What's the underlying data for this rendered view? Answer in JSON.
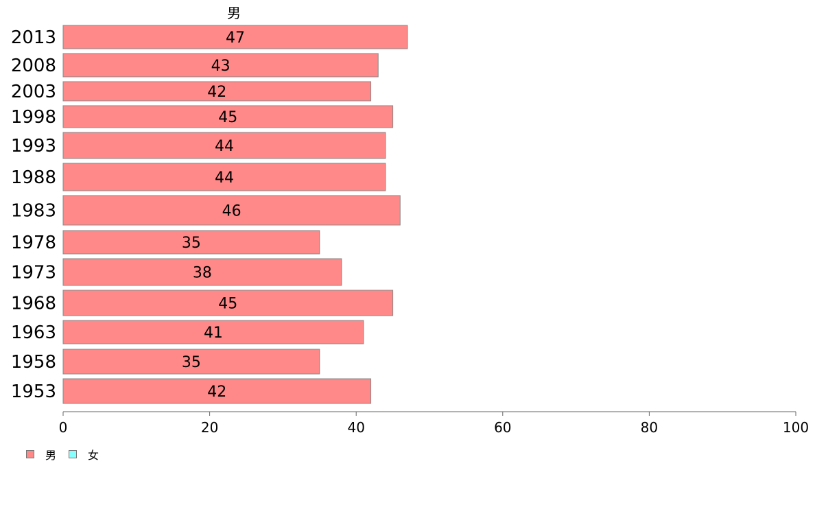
{
  "chart_data": {
    "type": "bar",
    "orientation": "horizontal",
    "series_title": "男",
    "categories": [
      "2013",
      "2008",
      "2003",
      "1998",
      "1993",
      "1988",
      "1983",
      "1978",
      "1973",
      "1968",
      "1963",
      "1958",
      "1953"
    ],
    "series": [
      {
        "name": "男",
        "color": "#ff8888",
        "values": [
          47,
          43,
          42,
          45,
          44,
          44,
          46,
          35,
          38,
          45,
          41,
          35,
          42
        ],
        "labels": [
          "47",
          "43",
          "42",
          "45",
          "44",
          "44",
          "46",
          "35",
          "38",
          "45",
          "41",
          "35",
          "42"
        ]
      }
    ],
    "xlim": [
      0,
      100
    ],
    "xticks": [
      "0",
      "20",
      "40",
      "60",
      "80",
      "100"
    ],
    "grid": false,
    "legend_position": "bottom-left"
  },
  "legend": [
    {
      "label": "男",
      "color": "#ff8888"
    },
    {
      "label": "女",
      "color": "#88ffff"
    }
  ]
}
